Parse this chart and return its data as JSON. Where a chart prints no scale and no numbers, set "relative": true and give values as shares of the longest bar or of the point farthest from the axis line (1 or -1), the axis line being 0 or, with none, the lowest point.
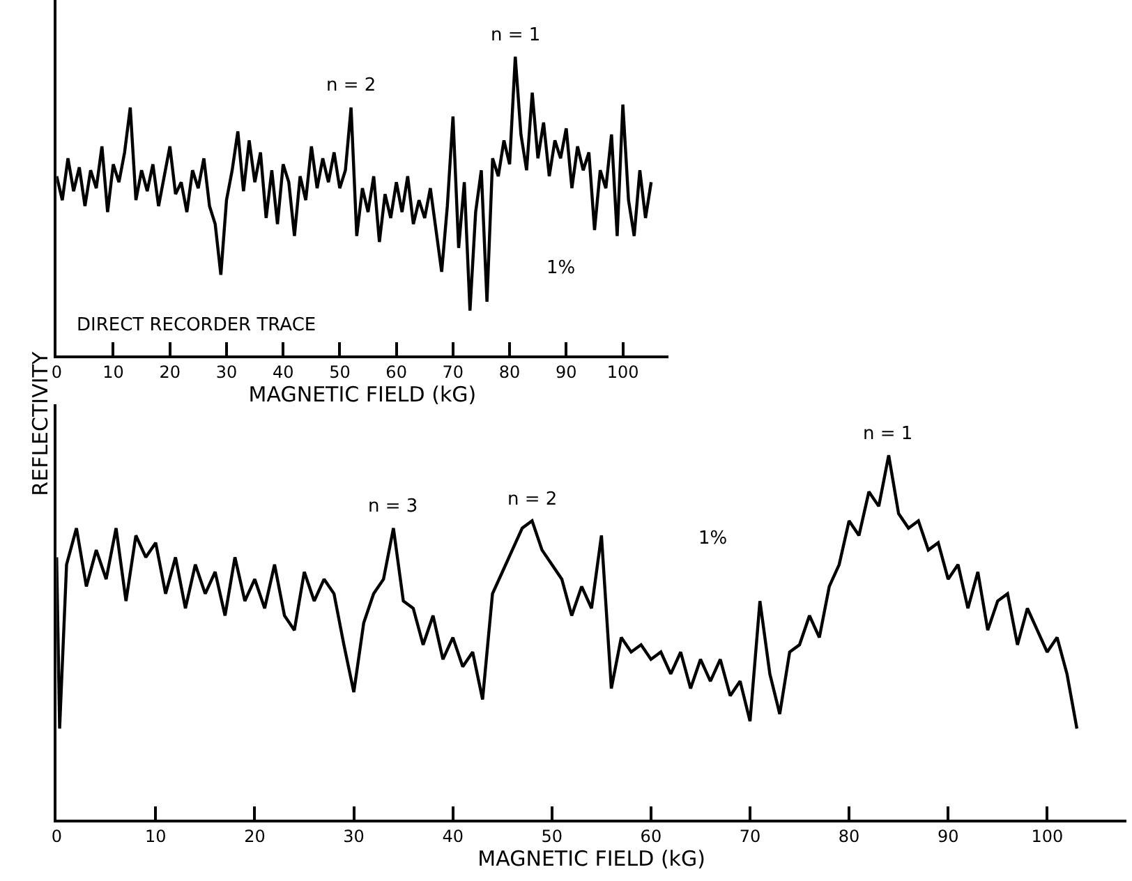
{
  "chart_data": [
    {
      "type": "line",
      "relative": true,
      "xlabel": "MAGNETIC FIELD (kG)",
      "xlim": [
        0,
        108
      ],
      "xticks": [
        0,
        10,
        20,
        30,
        40,
        50,
        60,
        70,
        80,
        90,
        100
      ],
      "tick_labels": "x",
      "marker": "none",
      "line_style": "solid",
      "annotations": [
        {
          "text": "n = 2",
          "x": 52,
          "y": 0.83
        },
        {
          "text": "n = 1",
          "x": 81,
          "y": 1.0
        },
        "DIRECT RECORDER TRACE",
        "1%"
      ],
      "series": [
        {
          "color": "#000000",
          "x": [
            0,
            1,
            2,
            3,
            4,
            5,
            6,
            7,
            8,
            9,
            10,
            11,
            12,
            13,
            14,
            15,
            16,
            17,
            18,
            19,
            20,
            21,
            22,
            23,
            24,
            25,
            26,
            27,
            28,
            29,
            30,
            31,
            32,
            33,
            34,
            35,
            36,
            37,
            38,
            39,
            40,
            41,
            42,
            43,
            44,
            45,
            46,
            47,
            48,
            49,
            50,
            51,
            52,
            53,
            54,
            55,
            56,
            57,
            58,
            59,
            60,
            61,
            62,
            63,
            64,
            65,
            66,
            67,
            68,
            69,
            70,
            71,
            72,
            73,
            74,
            75,
            76,
            77,
            78,
            79,
            80,
            81,
            82,
            83,
            84,
            85,
            86,
            87,
            88,
            89,
            90,
            91,
            92,
            93,
            94,
            95,
            96,
            97,
            98,
            99,
            100,
            101,
            102,
            103,
            104,
            105
          ],
          "values": [
            0.6,
            0.52,
            0.66,
            0.55,
            0.63,
            0.5,
            0.62,
            0.56,
            0.7,
            0.48,
            0.64,
            0.58,
            0.68,
            0.83,
            0.52,
            0.62,
            0.55,
            0.64,
            0.5,
            0.6,
            0.7,
            0.54,
            0.58,
            0.48,
            0.62,
            0.56,
            0.66,
            0.5,
            0.44,
            0.27,
            0.52,
            0.62,
            0.75,
            0.55,
            0.72,
            0.58,
            0.68,
            0.46,
            0.62,
            0.44,
            0.64,
            0.58,
            0.4,
            0.6,
            0.52,
            0.7,
            0.56,
            0.66,
            0.58,
            0.68,
            0.56,
            0.62,
            0.83,
            0.4,
            0.56,
            0.48,
            0.6,
            0.38,
            0.54,
            0.46,
            0.58,
            0.48,
            0.6,
            0.44,
            0.52,
            0.46,
            0.56,
            0.42,
            0.28,
            0.5,
            0.8,
            0.36,
            0.58,
            0.15,
            0.48,
            0.62,
            0.18,
            0.66,
            0.6,
            0.72,
            0.64,
            1.0,
            0.74,
            0.62,
            0.88,
            0.66,
            0.78,
            0.6,
            0.72,
            0.66,
            0.76,
            0.56,
            0.7,
            0.62,
            0.68,
            0.42,
            0.62,
            0.56,
            0.74,
            0.4,
            0.84,
            0.52,
            0.4,
            0.62,
            0.46,
            0.58
          ]
        }
      ]
    },
    {
      "type": "line",
      "relative": true,
      "xlabel": "MAGNETIC FIELD (kG)",
      "ylabel": "REFLECTIVITY",
      "xlim": [
        0,
        108
      ],
      "xticks": [
        0,
        10,
        20,
        30,
        40,
        50,
        60,
        70,
        80,
        90,
        100
      ],
      "tick_labels": "x",
      "marker": "none",
      "line_style": "solid",
      "annotations": [
        {
          "text": "n = 3",
          "x": 34,
          "y": 0.8
        },
        {
          "text": "n = 2",
          "x": 48,
          "y": 0.82
        },
        {
          "text": "n = 1",
          "x": 84,
          "y": 1.0
        },
        "1%"
      ],
      "series": [
        {
          "color": "#000000",
          "x": [
            0,
            0.3,
            1,
            2,
            3,
            4,
            5,
            6,
            7,
            8,
            9,
            10,
            11,
            12,
            13,
            14,
            15,
            16,
            17,
            18,
            19,
            20,
            21,
            22,
            23,
            24,
            25,
            26,
            27,
            28,
            29,
            30,
            31,
            32,
            33,
            34,
            35,
            36,
            37,
            38,
            39,
            40,
            41,
            42,
            43,
            44,
            45,
            46,
            47,
            48,
            49,
            50,
            51,
            52,
            53,
            54,
            55,
            56,
            57,
            58,
            59,
            60,
            61,
            62,
            63,
            64,
            65,
            66,
            67,
            68,
            69,
            70,
            71,
            72,
            73,
            74,
            75,
            76,
            77,
            78,
            79,
            80,
            81,
            82,
            83,
            84,
            85,
            86,
            87,
            88,
            89,
            90,
            91,
            92,
            93,
            94,
            95,
            96,
            97,
            98,
            99,
            100,
            101,
            102,
            103
          ],
          "values": [
            0.72,
            0.25,
            0.7,
            0.8,
            0.64,
            0.74,
            0.66,
            0.8,
            0.6,
            0.78,
            0.72,
            0.76,
            0.62,
            0.72,
            0.58,
            0.7,
            0.62,
            0.68,
            0.56,
            0.72,
            0.6,
            0.66,
            0.58,
            0.7,
            0.56,
            0.52,
            0.68,
            0.6,
            0.66,
            0.62,
            0.48,
            0.35,
            0.54,
            0.62,
            0.66,
            0.8,
            0.6,
            0.58,
            0.48,
            0.56,
            0.44,
            0.5,
            0.42,
            0.46,
            0.33,
            0.62,
            0.68,
            0.74,
            0.8,
            0.82,
            0.74,
            0.7,
            0.66,
            0.56,
            0.64,
            0.58,
            0.78,
            0.36,
            0.5,
            0.46,
            0.48,
            0.44,
            0.46,
            0.4,
            0.46,
            0.36,
            0.44,
            0.38,
            0.44,
            0.34,
            0.38,
            0.27,
            0.6,
            0.4,
            0.29,
            0.46,
            0.48,
            0.56,
            0.5,
            0.64,
            0.7,
            0.82,
            0.78,
            0.9,
            0.86,
            1.0,
            0.84,
            0.8,
            0.82,
            0.74,
            0.76,
            0.66,
            0.7,
            0.58,
            0.68,
            0.52,
            0.6,
            0.62,
            0.48,
            0.58,
            0.52,
            0.46,
            0.5,
            0.4,
            0.25
          ]
        }
      ]
    }
  ]
}
